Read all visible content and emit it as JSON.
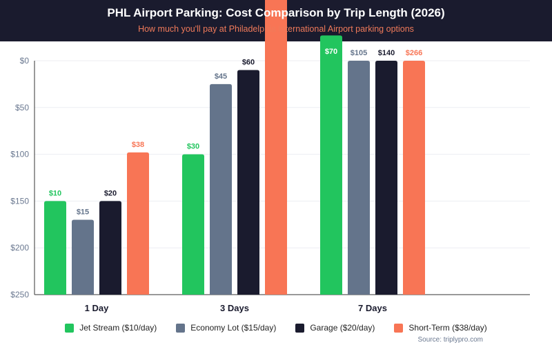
{
  "chart_data": {
    "type": "bar",
    "title": "PHL Airport Parking: Cost Comparison by Trip Length (2026)",
    "subtitle": "How much you'll pay at Philadelphia International Airport parking options",
    "categories": [
      "1 Day",
      "3 Days",
      "7 Days"
    ],
    "y_axis": {
      "ticks": [
        "$0",
        "$50",
        "$100",
        "$150",
        "$200",
        "$250"
      ],
      "tick_values": [
        0,
        50,
        100,
        150,
        200,
        250
      ],
      "ylim": [
        0,
        250
      ],
      "inverted": true
    },
    "grid": true,
    "legend_placement": "bottom",
    "series": [
      {
        "name": "Jet Stream ($10/day)",
        "color": "#22c55e",
        "label_color": "#22c55e",
        "values": [
          10,
          30,
          70
        ],
        "labels": [
          "$10",
          "$30",
          "$70"
        ],
        "bar_top_axis_values": [
          150,
          100,
          -27
        ]
      },
      {
        "name": "Economy Lot ($15/day)",
        "color": "#64748b",
        "label_color": "#64748b",
        "values": [
          15,
          45,
          105
        ],
        "labels": [
          "$15",
          "$45",
          "$105"
        ],
        "bar_top_axis_values": [
          170,
          25,
          0
        ]
      },
      {
        "name": "Garage ($20/day)",
        "color": "#1a1b2e",
        "label_color": "#1a1b2e",
        "values": [
          20,
          60,
          140
        ],
        "labels": [
          "$20",
          "$60",
          "$140"
        ],
        "bar_top_axis_values": [
          150,
          10,
          0
        ]
      },
      {
        "name": "Short-Term ($38/day)",
        "color": "#f87555",
        "label_color": "#f87555",
        "values": [
          38,
          null,
          266
        ],
        "labels": [
          "$38",
          null,
          "$266"
        ],
        "bar_top_axis_values": [
          98,
          -70,
          0
        ]
      }
    ],
    "source": "Source: triplypro.com"
  }
}
